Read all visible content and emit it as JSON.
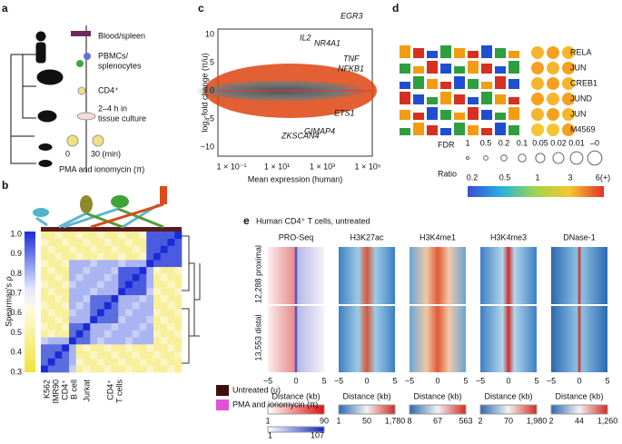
{
  "panel_a": {
    "label": "a",
    "steps": [
      "Blood/spleen",
      "PBMCs/",
      "splenocytes",
      "CD4⁺",
      "2–4 h in",
      "tissue culture",
      "0",
      "30 (min)",
      "PMA and ionomycin (π)"
    ]
  },
  "panel_b": {
    "label": "b",
    "y_label": "Spearman's ρ",
    "yticks": [
      "1.0",
      "0.9",
      "0.8",
      "0.7",
      "0.6",
      "0.5",
      "0.4",
      "0.3"
    ],
    "x_labels": [
      "K562",
      "IMR90",
      "CD4⁺",
      "B cell",
      "Jurkat",
      "CD4⁺",
      "T cells"
    ],
    "legend": [
      "Untreated (u)",
      "PMA and ionomycin (π)"
    ]
  },
  "panel_c": {
    "label": "c",
    "y_label": "log₂-fold change (π/u)",
    "yticks": [
      "10",
      "5",
      "0",
      "−5",
      "−10"
    ],
    "xticks": [
      "1 × 10⁻¹",
      "1 × 10¹",
      "1 × 10³",
      "1 × 10⁵"
    ],
    "x_label": "Mean expression (human)",
    "genes": [
      "EGR3",
      "IL2",
      "NR4A1",
      "TNF",
      "NFKB1",
      "ETS1",
      "GIMAP4",
      "ZKSCAN4"
    ]
  },
  "panel_d": {
    "label": "d",
    "motifs": [
      "RELA",
      "JUN",
      "CREB1",
      "JUND",
      "JUN",
      "M4569"
    ],
    "fdr_label": "FDR",
    "fdr_ticks": [
      "1",
      "0.5",
      "0.2",
      "0.1",
      "0.05",
      "0.02",
      "0.01",
      "–0"
    ],
    "ratio_label": "Ratio",
    "ratio_ticks": [
      "0.2",
      "0.5",
      "1",
      "3",
      "6(+)"
    ]
  },
  "panel_e": {
    "label": "e",
    "title": "Human CD4⁺ T cells, untreated",
    "columns": [
      "PRO-Seq",
      "H3K27ac",
      "H3K4me1",
      "H3K4me3",
      "DNase-1"
    ],
    "rows": [
      "12,288 proximal",
      "13,553 distal"
    ],
    "xticks": [
      "−5",
      "0",
      "5"
    ],
    "x_label": "Distance (kb)",
    "colorbars": [
      [
        "1",
        "90"
      ],
      [
        "1",
        "50",
        "1,780"
      ],
      [
        "8",
        "67",
        "563"
      ],
      [
        "2",
        "70",
        "1,980"
      ],
      [
        "2",
        "44",
        "1,260"
      ]
    ],
    "colorbar_extra": [
      "1",
      "107"
    ]
  }
}
